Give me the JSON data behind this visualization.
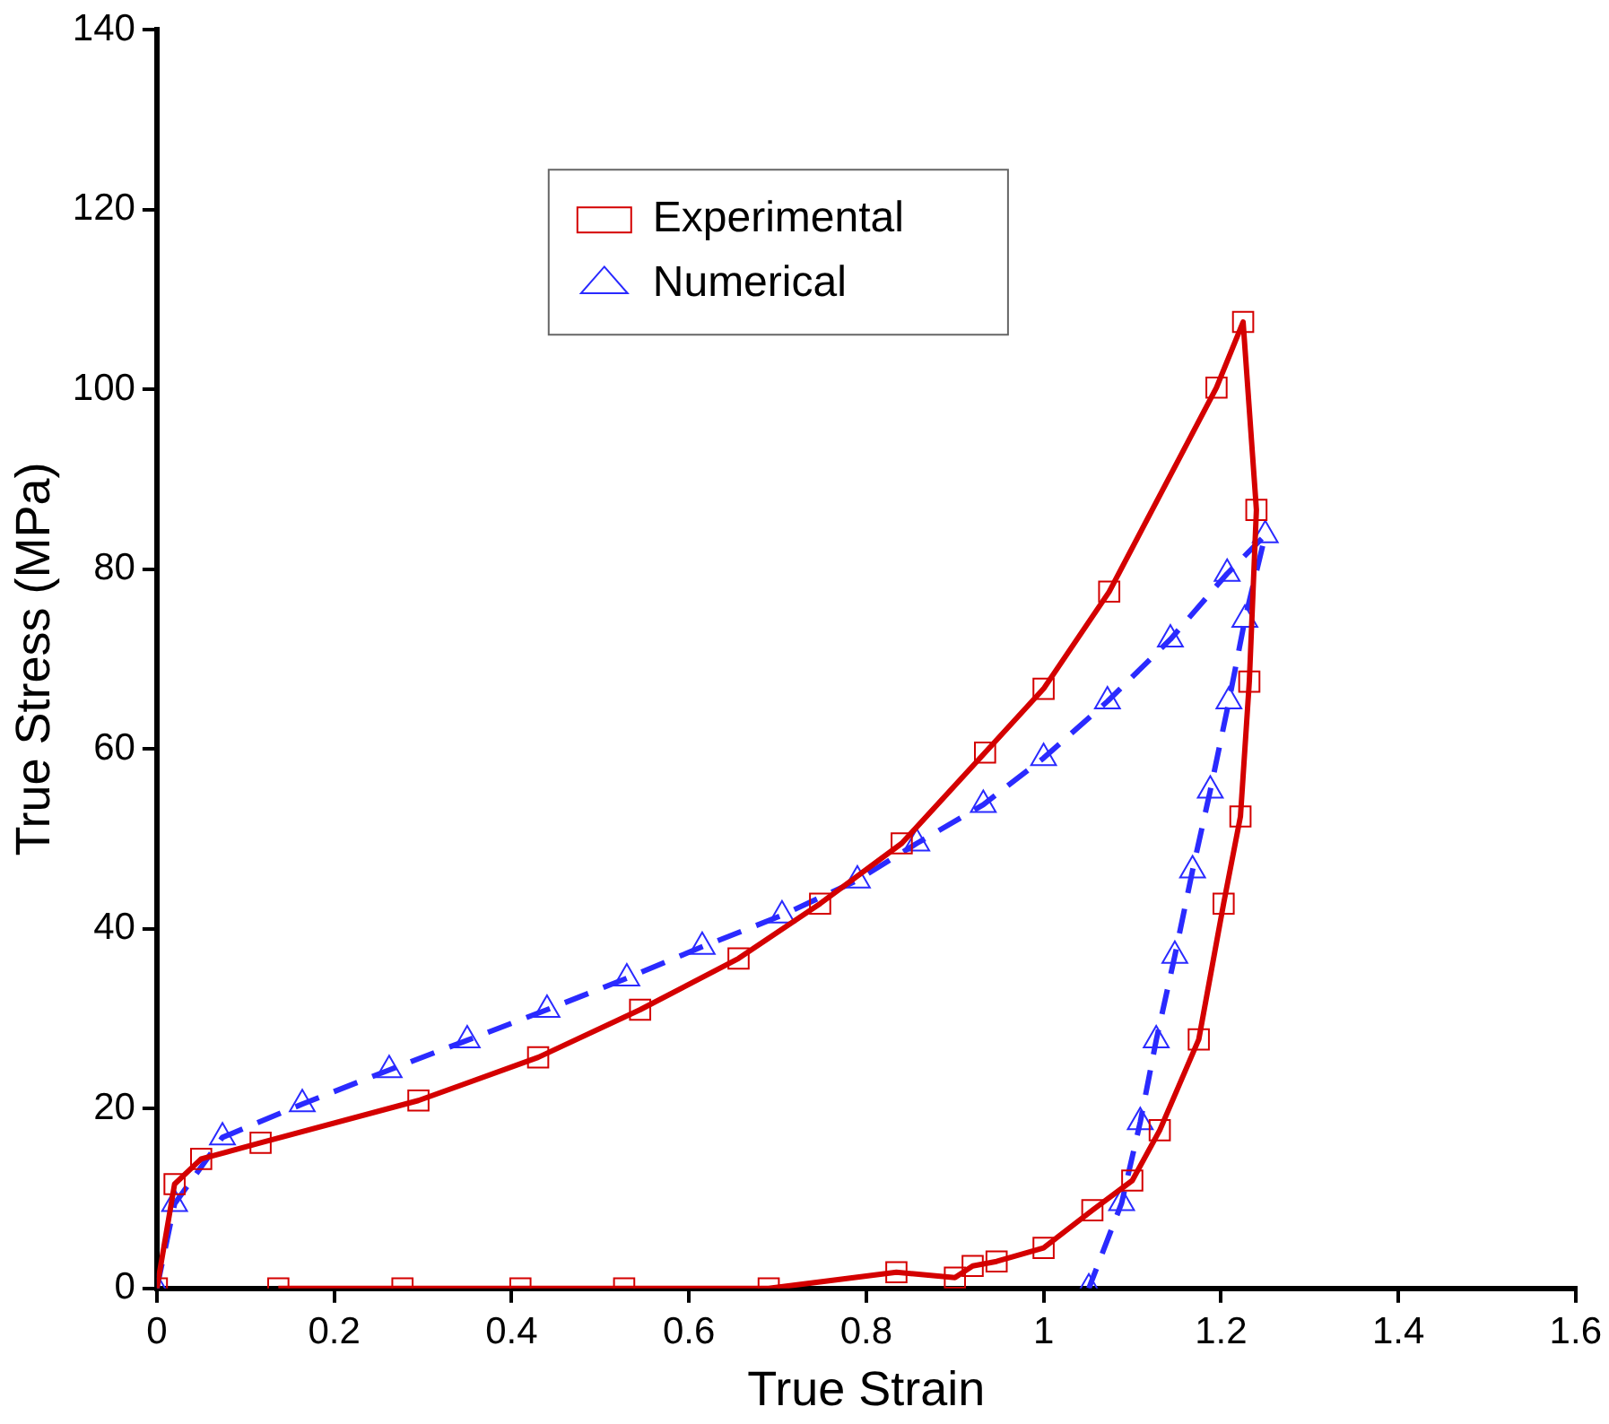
{
  "chart_data": {
    "type": "line",
    "xlabel": "True Strain",
    "ylabel": "True Stress (MPa)",
    "xlim": [
      0,
      1.6
    ],
    "ylim": [
      0,
      140
    ],
    "xticks": [
      0,
      0.2,
      0.4,
      0.6,
      0.8,
      1,
      1.2,
      1.4,
      1.6
    ],
    "yticks": [
      0,
      20,
      40,
      60,
      80,
      100,
      120,
      140
    ],
    "grid": false,
    "legend": "top",
    "series": [
      {
        "name": "Experimental",
        "color": "#d40000",
        "marker": "square",
        "line_style": "solid",
        "x": [
          0,
          0.02,
          0.05,
          0.117,
          0.295,
          0.43,
          0.545,
          0.656,
          0.748,
          0.84,
          0.934,
          1.0,
          1.074,
          1.195,
          1.225,
          1.24,
          1.232,
          1.222,
          1.203,
          1.175,
          1.131,
          1.1,
          1.055,
          1.0,
          0.947,
          0.92,
          0.9,
          0.834,
          0.69,
          0.527,
          0.41,
          0.277,
          0.137
        ],
        "values": [
          0,
          11.6,
          14.4,
          16.2,
          20.9,
          25.7,
          31,
          36.7,
          42.8,
          49.5,
          59.6,
          66.7,
          77.5,
          100.2,
          107.5,
          86.6,
          67.5,
          52.5,
          42.8,
          27.7,
          17.6,
          12,
          8.7,
          4.5,
          3,
          2.5,
          1.2,
          1.8,
          0,
          0,
          0,
          0,
          0
        ]
      },
      {
        "name": "Numerical",
        "color": "#2a2aff",
        "marker": "triangle",
        "line_style": "dashed",
        "x": [
          0,
          0.02,
          0.074,
          0.164,
          0.262,
          0.35,
          0.44,
          0.53,
          0.615,
          0.705,
          0.79,
          0.857,
          0.932,
          1.0,
          1.072,
          1.143,
          1.207,
          1.25,
          1.227,
          1.209,
          1.188,
          1.168,
          1.148,
          1.127,
          1.109,
          1.088,
          1.051
        ],
        "values": [
          0,
          9.4,
          16.8,
          20.5,
          24.3,
          27.6,
          31,
          34.5,
          38,
          41.5,
          45.4,
          49.5,
          53.8,
          59,
          65.3,
          72.2,
          79.5,
          83.8,
          74.4,
          65.3,
          55.4,
          46.5,
          37,
          27.6,
          18.5,
          9.5,
          0
        ]
      }
    ]
  }
}
